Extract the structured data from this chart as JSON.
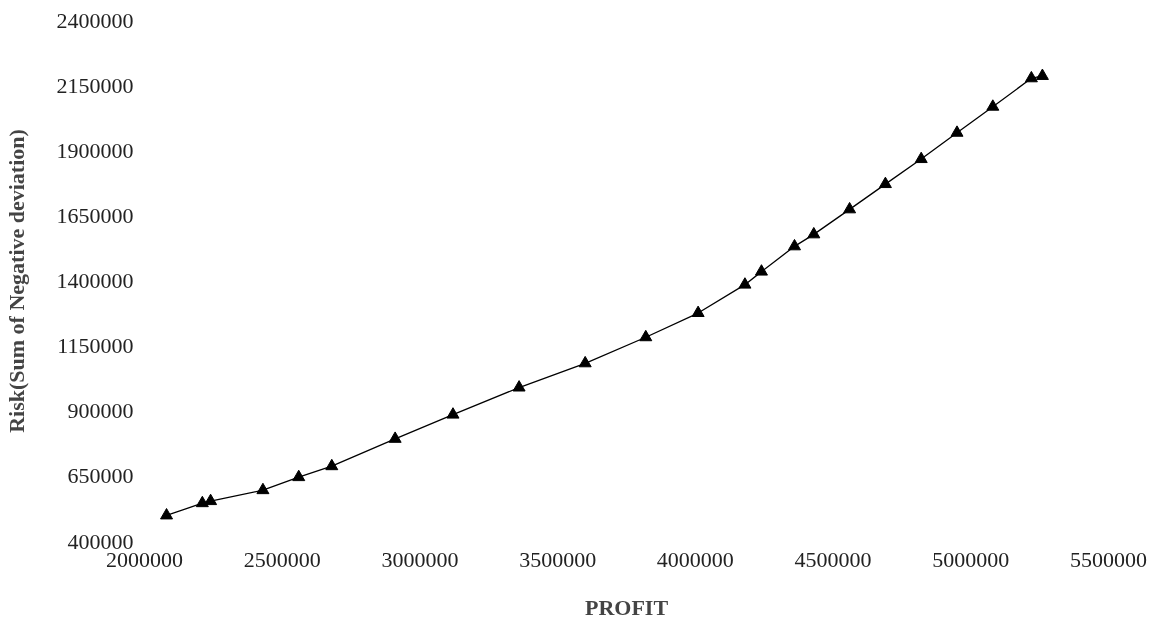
{
  "chart_data": {
    "type": "line",
    "xlabel": "PROFIT",
    "ylabel": "Risk(Sum of Negative deviation)",
    "x": [
      2080000,
      2210000,
      2240000,
      2430000,
      2560000,
      2680000,
      2910000,
      3120000,
      3360000,
      3600000,
      3820000,
      4010000,
      4180000,
      4240000,
      4360000,
      4430000,
      4560000,
      4690000,
      4820000,
      4950000,
      5080000,
      5220000,
      5260000
    ],
    "series": [
      {
        "color": "#000000",
        "values": [
          500000,
          547000,
          555000,
          597000,
          647000,
          689000,
          794000,
          887000,
          991000,
          1084000,
          1184000,
          1277000,
          1386000,
          1436000,
          1533000,
          1579000,
          1675000,
          1772000,
          1868000,
          1969000,
          2069000,
          2178000,
          2187000
        ]
      }
    ],
    "xlim": [
      2000000,
      5500000
    ],
    "xticks": [
      2000000,
      2500000,
      3000000,
      3500000,
      4000000,
      4500000,
      5000000,
      5500000
    ],
    "ylim": [
      400000,
      2400000
    ],
    "yticks": [
      400000,
      650000,
      900000,
      1150000,
      1400000,
      1650000,
      1900000,
      2150000,
      2400000
    ],
    "marker": "triangle",
    "line_style": "solid",
    "grid": false
  }
}
